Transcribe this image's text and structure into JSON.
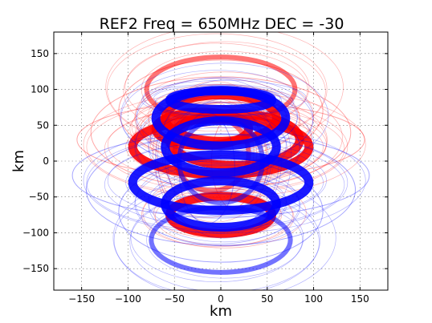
{
  "chart_data": {
    "type": "scatter",
    "title": "REF2  Freq = 650MHz  DEC = -30",
    "xlabel": "km",
    "ylabel": "km",
    "xlim": [
      -180,
      180
    ],
    "ylim": [
      -180,
      180
    ],
    "xticks": [
      -150,
      -100,
      -50,
      0,
      50,
      100,
      150
    ],
    "yticks": [
      -150,
      -100,
      -50,
      0,
      50,
      100,
      150
    ],
    "xtick_labels": [
      "−150",
      "−100",
      "−50",
      "0",
      "50",
      "100",
      "150"
    ],
    "ytick_labels": [
      "−150",
      "−100",
      "−50",
      "0",
      "50",
      "100",
      "150"
    ],
    "grid": true,
    "legend": "none",
    "series": [
      {
        "color": "#ff0000",
        "ellipses": [
          {
            "cx": 0,
            "cy": 20,
            "rx": 95,
            "ry": 30
          },
          {
            "cx": 0,
            "cy": 60,
            "rx": 60,
            "ry": 25
          },
          {
            "cx": 15,
            "cy": 30,
            "rx": 70,
            "ry": 28
          },
          {
            "cx": -20,
            "cy": 45,
            "rx": 50,
            "ry": 18
          },
          {
            "cx": 0,
            "cy": -75,
            "rx": 55,
            "ry": 20
          },
          {
            "cx": -10,
            "cy": 10,
            "rx": 40,
            "ry": 40
          },
          {
            "cx": 20,
            "cy": 0,
            "rx": 30,
            "ry": 55
          },
          {
            "cx": 0,
            "cy": 40,
            "rx": 140,
            "ry": 60
          },
          {
            "cx": 0,
            "cy": 70,
            "rx": 110,
            "ry": 55
          },
          {
            "cx": 0,
            "cy": 30,
            "rx": 155,
            "ry": 40
          },
          {
            "cx": 0,
            "cy": 100,
            "rx": 80,
            "ry": 35
          }
        ]
      },
      {
        "color": "#0000ff",
        "ellipses": [
          {
            "cx": 0,
            "cy": -30,
            "rx": 95,
            "ry": 30
          },
          {
            "cx": 0,
            "cy": 85,
            "rx": 55,
            "ry": 10
          },
          {
            "cx": 0,
            "cy": -60,
            "rx": 60,
            "ry": 25
          },
          {
            "cx": 0,
            "cy": 20,
            "rx": 60,
            "ry": 28
          },
          {
            "cx": 0,
            "cy": 0,
            "rx": 45,
            "ry": 45
          },
          {
            "cx": -15,
            "cy": -10,
            "rx": 30,
            "ry": 60
          },
          {
            "cx": 0,
            "cy": -40,
            "rx": 145,
            "ry": 60
          },
          {
            "cx": 0,
            "cy": -70,
            "rx": 110,
            "ry": 55
          },
          {
            "cx": 0,
            "cy": -20,
            "rx": 160,
            "ry": 45
          },
          {
            "cx": 0,
            "cy": -110,
            "rx": 75,
            "ry": 35
          },
          {
            "cx": 0,
            "cy": 60,
            "rx": 70,
            "ry": 30
          }
        ]
      }
    ]
  }
}
